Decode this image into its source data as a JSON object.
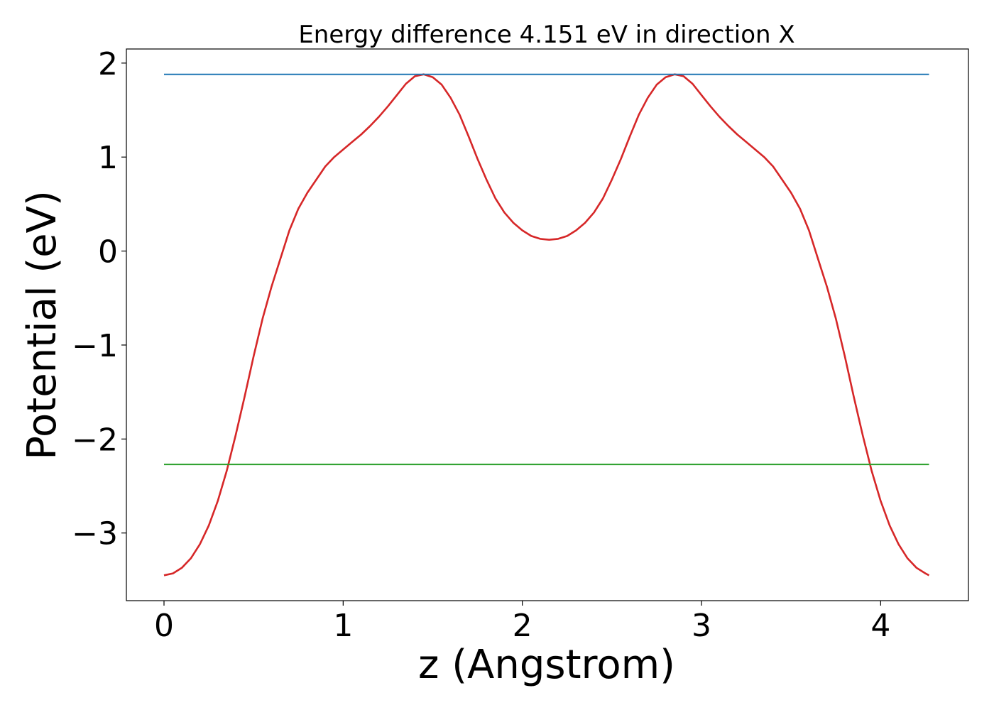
{
  "chart_data": {
    "type": "line",
    "title": "Energy difference 4.151 eV in direction X",
    "xlabel": "z (Angstrom)",
    "ylabel": "Potential (eV)",
    "xlim": [
      -0.21,
      4.49
    ],
    "ylim": [
      -3.72,
      2.15
    ],
    "xticks": [
      0,
      1,
      2,
      3,
      4
    ],
    "yticks": [
      -3,
      -2,
      -1,
      0,
      1,
      2
    ],
    "xtick_labels": [
      "0",
      "1",
      "2",
      "3",
      "4"
    ],
    "ytick_labels": [
      "−3",
      "−2",
      "−1",
      "0",
      "1",
      "2"
    ],
    "grid": false,
    "series": [
      {
        "color": "#d62728",
        "x": [
          0.0,
          0.05,
          0.1,
          0.15,
          0.2,
          0.25,
          0.3,
          0.35,
          0.4,
          0.45,
          0.5,
          0.55,
          0.6,
          0.65,
          0.7,
          0.75,
          0.8,
          0.85,
          0.9,
          0.95,
          1.0,
          1.05,
          1.1,
          1.15,
          1.2,
          1.25,
          1.3,
          1.35,
          1.4,
          1.45,
          1.5,
          1.55,
          1.6,
          1.65,
          1.7,
          1.75,
          1.8,
          1.85,
          1.9,
          1.95,
          2.0,
          2.05,
          2.1,
          2.15,
          2.2,
          2.25,
          2.3,
          2.35,
          2.4,
          2.45,
          2.5,
          2.55,
          2.6,
          2.65,
          2.7,
          2.75,
          2.8,
          2.85,
          2.9,
          2.95,
          3.0,
          3.05,
          3.1,
          3.15,
          3.2,
          3.25,
          3.3,
          3.35,
          3.4,
          3.45,
          3.5,
          3.55,
          3.6,
          3.65,
          3.7,
          3.75,
          3.8,
          3.85,
          3.9,
          3.95,
          4.0,
          4.05,
          4.1,
          4.15,
          4.2,
          4.25,
          4.27
        ],
        "y": [
          -3.45,
          -3.43,
          -3.37,
          -3.27,
          -3.12,
          -2.92,
          -2.66,
          -2.34,
          -1.96,
          -1.55,
          -1.12,
          -0.72,
          -0.38,
          -0.08,
          0.22,
          0.45,
          0.62,
          0.76,
          0.9,
          1.0,
          1.08,
          1.16,
          1.24,
          1.33,
          1.43,
          1.54,
          1.66,
          1.78,
          1.86,
          1.88,
          1.85,
          1.77,
          1.63,
          1.45,
          1.22,
          0.98,
          0.76,
          0.56,
          0.41,
          0.3,
          0.22,
          0.16,
          0.13,
          0.12,
          0.13,
          0.16,
          0.22,
          0.3,
          0.41,
          0.56,
          0.76,
          0.98,
          1.22,
          1.45,
          1.63,
          1.77,
          1.85,
          1.88,
          1.86,
          1.78,
          1.66,
          1.54,
          1.43,
          1.33,
          1.24,
          1.16,
          1.08,
          1.0,
          0.9,
          0.76,
          0.62,
          0.45,
          0.22,
          -0.08,
          -0.38,
          -0.72,
          -1.12,
          -1.55,
          -1.96,
          -2.34,
          -2.66,
          -2.92,
          -3.12,
          -3.27,
          -3.37,
          -3.43,
          -3.45
        ]
      },
      {
        "color": "#1f77b4",
        "x": [
          0.0,
          4.27
        ],
        "y": [
          1.88,
          1.88
        ]
      },
      {
        "color": "#2ca02c",
        "x": [
          0.0,
          4.27
        ],
        "y": [
          -2.27,
          -2.27
        ]
      }
    ]
  }
}
